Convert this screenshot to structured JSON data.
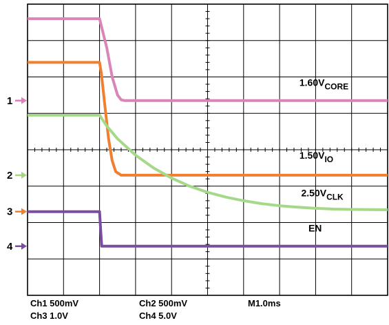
{
  "chart_data": {
    "type": "line",
    "title": "",
    "xlabel": "",
    "ylabel": "",
    "grid": true,
    "x_divisions": 10,
    "y_divisions": 8,
    "xlim": [
      0,
      10
    ],
    "ylim": [
      0,
      8
    ],
    "series": [
      {
        "name": "1.60V",
        "subscript": "CORE",
        "channel": "1",
        "color": "#d985b8",
        "marker_color": "#e07fb8",
        "ground_div": 5.35,
        "points": [
          [
            0,
            7.6
          ],
          [
            2.0,
            7.6
          ],
          [
            2.05,
            7.4
          ],
          [
            2.2,
            6.8
          ],
          [
            2.35,
            6.0
          ],
          [
            2.5,
            5.5
          ],
          [
            2.6,
            5.37
          ],
          [
            2.7,
            5.35
          ],
          [
            10,
            5.35
          ]
        ]
      },
      {
        "name": "1.50V",
        "subscript": "IO",
        "channel": "2",
        "color": "#f08030",
        "marker_color": "#a9d47e",
        "ground_div": 3.3,
        "points": [
          [
            0,
            6.4
          ],
          [
            2.0,
            6.4
          ],
          [
            2.05,
            6.1
          ],
          [
            2.15,
            5.2
          ],
          [
            2.25,
            4.3
          ],
          [
            2.35,
            3.7
          ],
          [
            2.45,
            3.4
          ],
          [
            2.6,
            3.3
          ],
          [
            10,
            3.3
          ]
        ]
      },
      {
        "name": "2.50V",
        "subscript": "CLK",
        "channel": "3",
        "color": "#a6d88a",
        "marker_color": "#f08030",
        "ground_div": 2.3,
        "points": [
          [
            0,
            4.95
          ],
          [
            2.0,
            4.95
          ],
          [
            2.2,
            4.65
          ],
          [
            2.5,
            4.3
          ],
          [
            3.0,
            3.85
          ],
          [
            3.5,
            3.5
          ],
          [
            4.0,
            3.22
          ],
          [
            4.5,
            3.0
          ],
          [
            5.0,
            2.83
          ],
          [
            5.5,
            2.7
          ],
          [
            6.0,
            2.6
          ],
          [
            6.5,
            2.52
          ],
          [
            7.0,
            2.46
          ],
          [
            7.5,
            2.42
          ],
          [
            8.0,
            2.39
          ],
          [
            8.5,
            2.37
          ],
          [
            9.0,
            2.36
          ],
          [
            10,
            2.35
          ]
        ]
      },
      {
        "name": "EN",
        "subscript": "",
        "channel": "4",
        "color": "#7a4da3",
        "marker_color": "#7a4da3",
        "ground_div": 1.35,
        "points": [
          [
            0,
            2.3
          ],
          [
            2.0,
            2.3
          ],
          [
            2.03,
            1.8
          ],
          [
            2.06,
            1.35
          ],
          [
            10,
            1.35
          ]
        ]
      }
    ],
    "channel_markers": [
      {
        "label": "1",
        "div": 5.35,
        "color": "#e07fb8"
      },
      {
        "label": "2",
        "div": 3.3,
        "color": "#a9d47e"
      },
      {
        "label": "3",
        "div": 2.3,
        "color": "#f08030"
      },
      {
        "label": "4",
        "div": 1.35,
        "color": "#7a4da3"
      }
    ],
    "trace_labels": [
      {
        "text": "1.60V",
        "sub": "CORE",
        "x_div": 7.55,
        "y_div": 5.75
      },
      {
        "text": "1.50V",
        "sub": "IO",
        "x_div": 7.55,
        "y_div": 3.75
      },
      {
        "text": "2.50V",
        "sub": "CLK",
        "x_div": 7.6,
        "y_div": 2.72
      },
      {
        "text": "EN",
        "sub": "",
        "x_div": 7.8,
        "y_div": 1.75
      }
    ],
    "settings": {
      "ch1": "Ch1 500mV",
      "ch2": "Ch2 500mV",
      "ch3": "Ch3 1.0V",
      "ch4": "Ch4 5.0V",
      "timebase": "M1.0ms"
    }
  }
}
